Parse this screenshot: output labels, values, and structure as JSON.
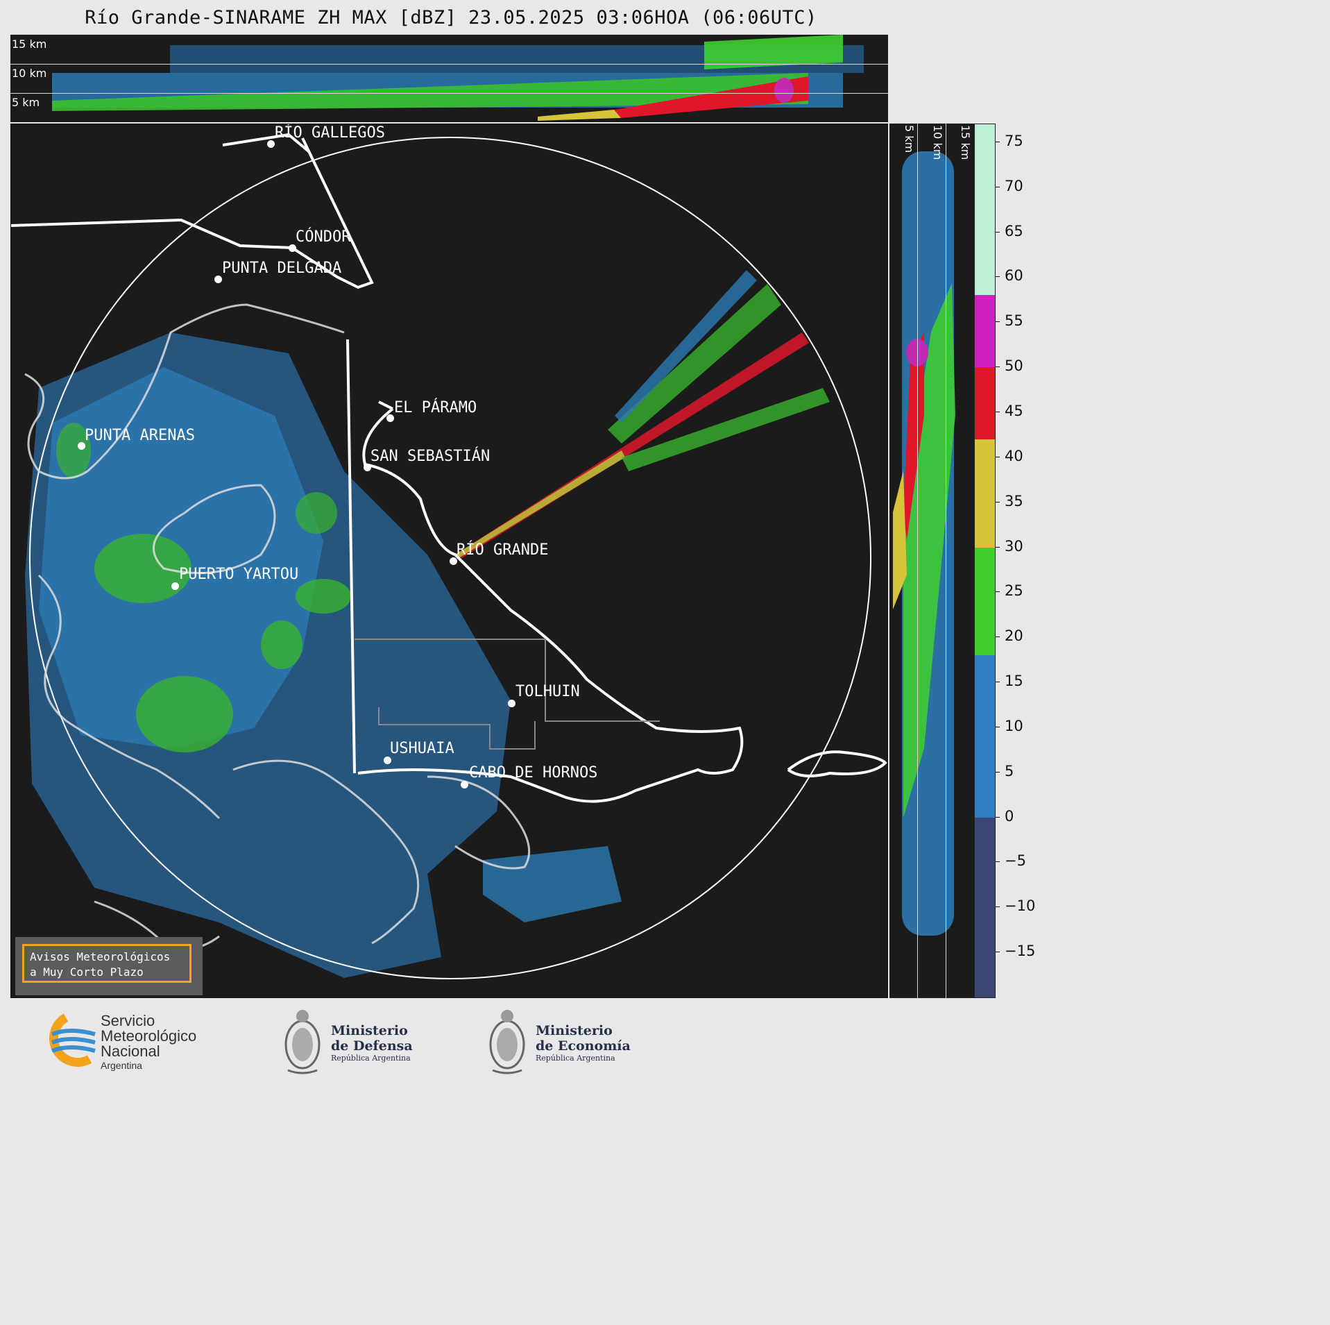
{
  "title": "Río Grande-SINARAME ZH MAX [dBZ] 23.05.2025 03:06HOA (06:06UTC)",
  "top_panel": {
    "levels": [
      "15 km",
      "10 km",
      "5 km"
    ]
  },
  "side_panel": {
    "levels": [
      "5 km",
      "10 km",
      "15 km"
    ]
  },
  "cities": [
    {
      "name": "RÍO GALLEGOS"
    },
    {
      "name": "CÓNDOR"
    },
    {
      "name": "PUNTA DELGADA"
    },
    {
      "name": "EL PÁRAMO"
    },
    {
      "name": "SAN SEBASTIÁN"
    },
    {
      "name": "PUNTA ARENAS"
    },
    {
      "name": "RÍO GRANDE"
    },
    {
      "name": "PUERTO YARTOU"
    },
    {
      "name": "TOLHUIN"
    },
    {
      "name": "USHUAIA"
    },
    {
      "name": "CABO DE HORNOS"
    }
  ],
  "colorbar": {
    "unit": "dBZ",
    "ticks": [
      "75",
      "70",
      "65",
      "60",
      "55",
      "50",
      "45",
      "40",
      "35",
      "30",
      "25",
      "20",
      "15",
      "10",
      "5",
      "0",
      "−5",
      "−10",
      "−15"
    ],
    "range": [
      -20,
      77
    ],
    "bands": [
      {
        "from": -20,
        "to": 0,
        "color": "#3c4675"
      },
      {
        "from": 0,
        "to": 18,
        "color": "#2f7fc2"
      },
      {
        "from": 18,
        "to": 30,
        "color": "#3fcf2f"
      },
      {
        "from": 30,
        "to": 42,
        "color": "#d6c53a"
      },
      {
        "from": 42,
        "to": 50,
        "color": "#e0162b"
      },
      {
        "from": 50,
        "to": 58,
        "color": "#d020c0"
      },
      {
        "from": 58,
        "to": 77,
        "color": "#bfeed6"
      }
    ]
  },
  "notice": "Avisos Meteorológicos\na Muy Corto Plazo",
  "logos": {
    "smn": {
      "line1": "Servicio",
      "line2": "Meteorológico",
      "line3": "Nacional",
      "line4": "Argentina"
    },
    "defensa": {
      "line1": "Ministerio",
      "line2": "de Defensa",
      "line3": "República Argentina"
    },
    "economia": {
      "line1": "Ministerio",
      "line2": "de Economía",
      "line3": "República Argentina"
    }
  }
}
